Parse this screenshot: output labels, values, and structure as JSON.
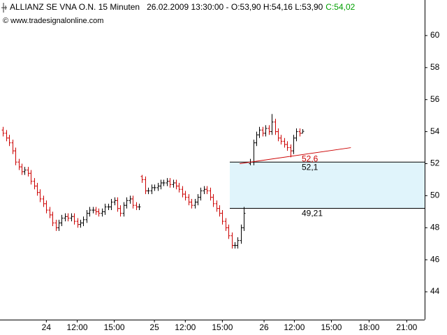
{
  "chart_data": {
    "type": "ohlc",
    "title": "ALLIANZ SE VNA O.N. 15 Minuten",
    "subtitle": "26.02.2009 13:30:00 - O:53,90 H:54,16 L:53,90",
    "last_close_label": "C:54,02",
    "copyright": "© www.tradesignalonline.com",
    "up_color": "#000000",
    "down_color": "#cc0000",
    "x": [
      1,
      2,
      3,
      4,
      5,
      6,
      7,
      8,
      9,
      10,
      11,
      12,
      13,
      14,
      15,
      16,
      17,
      18,
      19,
      20,
      21,
      22,
      23,
      24,
      25,
      26,
      27,
      28,
      29,
      30,
      31,
      32,
      33,
      34,
      35,
      36,
      37,
      38,
      39,
      40,
      41,
      42,
      43,
      44,
      45,
      46,
      47,
      48,
      49,
      50,
      51,
      52,
      53,
      54,
      55,
      56,
      57,
      58,
      59,
      60,
      61,
      62,
      63,
      64,
      65,
      66,
      67,
      68,
      69,
      70,
      71,
      72,
      73,
      74,
      75,
      76,
      77,
      78,
      79,
      81,
      82,
      83,
      84,
      85,
      86,
      87,
      88,
      89,
      90,
      91,
      92,
      93,
      94,
      95,
      96,
      97,
      98
    ],
    "open": [
      54.1,
      53.9,
      53.6,
      53.3,
      52.8,
      52.1,
      51.8,
      51.5,
      51.6,
      51.4,
      50.9,
      50.6,
      50.2,
      49.8,
      49.5,
      49.1,
      48.8,
      48.3,
      48.0,
      48.3,
      48.6,
      48.7,
      48.6,
      48.7,
      48.4,
      48.2,
      48.3,
      48.5,
      48.9,
      49.1,
      49.1,
      49.0,
      48.9,
      49.0,
      49.3,
      49.3,
      49.6,
      49.7,
      49.2,
      48.9,
      49.4,
      49.7,
      49.8,
      49.4,
      49.3,
      51.2,
      51.0,
      50.3,
      50.3,
      50.5,
      50.5,
      50.6,
      50.8,
      50.8,
      50.9,
      50.7,
      50.8,
      50.6,
      50.4,
      50.1,
      49.9,
      49.6,
      49.4,
      49.6,
      49.9,
      50.3,
      50.4,
      50.3,
      49.9,
      49.5,
      49.2,
      48.9,
      48.4,
      48.0,
      47.5,
      46.9,
      46.9,
      47.2,
      48.0,
      52.0,
      52.1,
      53.3,
      53.8,
      54.1,
      53.9,
      54.2,
      54.0,
      54.6,
      54.0,
      53.6,
      53.4,
      53.2,
      53.0,
      52.8,
      53.6,
      54.0,
      53.9
    ],
    "high": [
      54.3,
      54.1,
      53.8,
      53.5,
      53.0,
      52.3,
      52.0,
      51.8,
      51.8,
      51.6,
      51.1,
      50.8,
      50.4,
      50.0,
      49.7,
      49.3,
      49.0,
      48.5,
      48.5,
      48.8,
      48.9,
      48.9,
      48.9,
      48.9,
      48.6,
      48.5,
      48.7,
      49.1,
      49.3,
      49.3,
      49.3,
      49.2,
      49.2,
      49.5,
      49.5,
      49.8,
      49.9,
      49.9,
      49.4,
      49.6,
      49.9,
      50.0,
      50.0,
      49.6,
      49.5,
      51.3,
      51.2,
      50.5,
      50.7,
      50.7,
      50.8,
      51.0,
      51.0,
      51.1,
      51.1,
      51.0,
      51.0,
      50.8,
      50.6,
      50.3,
      50.1,
      49.8,
      49.8,
      50.1,
      50.5,
      50.6,
      50.6,
      50.5,
      50.1,
      49.7,
      49.4,
      49.1,
      48.6,
      48.2,
      47.7,
      47.1,
      47.4,
      48.2,
      49.3,
      52.3,
      53.5,
      54.0,
      54.3,
      54.3,
      54.4,
      54.4,
      55.1,
      54.8,
      54.2,
      53.8,
      53.6,
      53.4,
      53.2,
      53.8,
      54.2,
      54.2,
      54.16
    ],
    "low": [
      53.7,
      53.4,
      53.1,
      52.6,
      51.9,
      51.6,
      51.3,
      51.3,
      51.2,
      50.7,
      50.4,
      50.0,
      49.6,
      49.3,
      48.9,
      48.6,
      48.1,
      47.8,
      47.8,
      48.1,
      48.4,
      48.4,
      48.4,
      48.2,
      48.0,
      48.0,
      48.1,
      48.3,
      48.7,
      48.9,
      48.8,
      48.7,
      48.7,
      48.8,
      49.1,
      49.1,
      49.4,
      49.0,
      48.7,
      48.7,
      49.2,
      49.5,
      49.2,
      49.1,
      49.1,
      50.8,
      50.1,
      50.1,
      50.1,
      50.3,
      50.3,
      50.4,
      50.6,
      50.6,
      50.5,
      50.5,
      50.4,
      50.2,
      49.9,
      49.7,
      49.4,
      49.2,
      49.2,
      49.4,
      49.7,
      50.1,
      50.1,
      49.7,
      49.3,
      49.0,
      48.7,
      48.2,
      47.8,
      47.3,
      46.7,
      46.7,
      46.7,
      47.0,
      47.8,
      51.9,
      51.9,
      53.1,
      53.6,
      53.7,
      53.7,
      53.8,
      53.8,
      53.8,
      53.4,
      53.2,
      53.0,
      52.8,
      52.4,
      52.6,
      53.4,
      53.7,
      53.9
    ],
    "close": [
      53.9,
      53.6,
      53.3,
      52.8,
      52.1,
      51.8,
      51.5,
      51.6,
      51.4,
      50.9,
      50.6,
      50.2,
      49.8,
      49.5,
      49.1,
      48.8,
      48.3,
      48.0,
      48.3,
      48.6,
      48.7,
      48.6,
      48.7,
      48.4,
      48.2,
      48.3,
      48.5,
      48.9,
      49.1,
      49.1,
      49.0,
      48.9,
      49.0,
      49.3,
      49.3,
      49.6,
      49.7,
      49.2,
      48.9,
      49.4,
      49.7,
      49.8,
      49.4,
      49.3,
      49.3,
      51.0,
      50.3,
      50.3,
      50.5,
      50.5,
      50.6,
      50.8,
      50.8,
      50.9,
      50.7,
      50.8,
      50.6,
      50.4,
      50.1,
      49.9,
      49.6,
      49.4,
      49.6,
      49.9,
      50.3,
      50.4,
      50.3,
      49.9,
      49.5,
      49.2,
      48.9,
      48.4,
      48.0,
      47.5,
      46.9,
      46.9,
      47.2,
      48.0,
      48.9,
      52.1,
      53.3,
      53.8,
      54.1,
      53.9,
      54.2,
      54.0,
      54.6,
      54.0,
      53.6,
      53.4,
      53.2,
      53.0,
      52.8,
      53.6,
      54.0,
      53.9,
      54.02
    ],
    "zone": {
      "x_start": 74.4,
      "upper": 52.1,
      "lower": 49.21,
      "upper_label": "52,1",
      "lower_label": "49,21",
      "color": "#e0f4fb"
    },
    "trendline": {
      "x": [
        77.6,
        113.6
      ],
      "y": [
        52.0,
        53.0
      ],
      "label": "52,6",
      "color": "#cc0000"
    },
    "xlim": [
      0,
      137.5
    ],
    "xticks": [
      {
        "value": 15,
        "label": "24"
      },
      {
        "value": 25,
        "label": "12:00"
      },
      {
        "value": 37,
        "label": "15:00"
      },
      {
        "value": 50,
        "label": "25"
      },
      {
        "value": 60,
        "label": "12:00"
      },
      {
        "value": 72,
        "label": "15:00"
      },
      {
        "value": 85.5,
        "label": "26"
      },
      {
        "value": 95.3,
        "label": "12:00"
      },
      {
        "value": 107.3,
        "label": "15:00"
      },
      {
        "value": 119.5,
        "label": "18:00"
      },
      {
        "value": 131.7,
        "label": "21:00"
      }
    ],
    "ylim": [
      42.26,
      62.22
    ],
    "yticks": [
      44,
      46,
      48,
      50,
      52,
      54,
      56,
      58,
      60
    ]
  }
}
